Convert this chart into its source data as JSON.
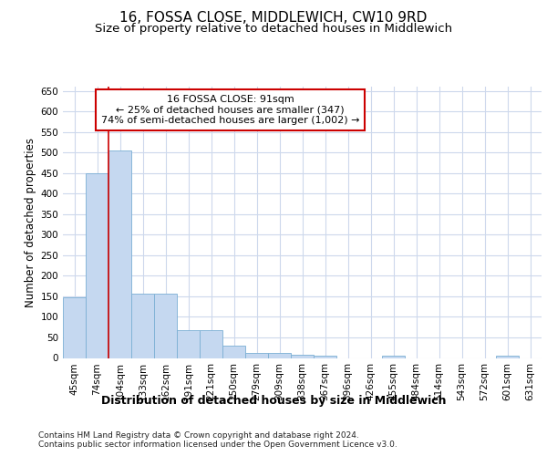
{
  "title": "16, FOSSA CLOSE, MIDDLEWICH, CW10 9RD",
  "subtitle": "Size of property relative to detached houses in Middlewich",
  "xlabel": "Distribution of detached houses by size in Middlewich",
  "ylabel": "Number of detached properties",
  "categories": [
    "45sqm",
    "74sqm",
    "104sqm",
    "133sqm",
    "162sqm",
    "191sqm",
    "221sqm",
    "250sqm",
    "279sqm",
    "309sqm",
    "338sqm",
    "367sqm",
    "396sqm",
    "426sqm",
    "455sqm",
    "484sqm",
    "514sqm",
    "543sqm",
    "572sqm",
    "601sqm",
    "631sqm"
  ],
  "values": [
    147,
    450,
    505,
    157,
    157,
    67,
    67,
    30,
    13,
    13,
    8,
    5,
    0,
    0,
    5,
    0,
    0,
    0,
    0,
    5,
    0
  ],
  "bar_color": "#c5d8f0",
  "bar_edge_color": "#7bafd4",
  "vline_color": "#cc0000",
  "vline_x_index": 1.5,
  "annotation_text": "16 FOSSA CLOSE: 91sqm\n← 25% of detached houses are smaller (347)\n74% of semi-detached houses are larger (1,002) →",
  "annotation_box_facecolor": "#ffffff",
  "annotation_box_edgecolor": "#cc0000",
  "ylim": [
    0,
    660
  ],
  "yticks": [
    0,
    50,
    100,
    150,
    200,
    250,
    300,
    350,
    400,
    450,
    500,
    550,
    600,
    650
  ],
  "background_color": "#ffffff",
  "grid_color": "#cdd8ec",
  "title_fontsize": 11,
  "subtitle_fontsize": 9.5,
  "xlabel_fontsize": 9,
  "ylabel_fontsize": 8.5,
  "tick_fontsize": 7.5,
  "annotation_fontsize": 8,
  "footer_fontsize": 6.5,
  "footer_text": "Contains HM Land Registry data © Crown copyright and database right 2024.\nContains public sector information licensed under the Open Government Licence v3.0."
}
